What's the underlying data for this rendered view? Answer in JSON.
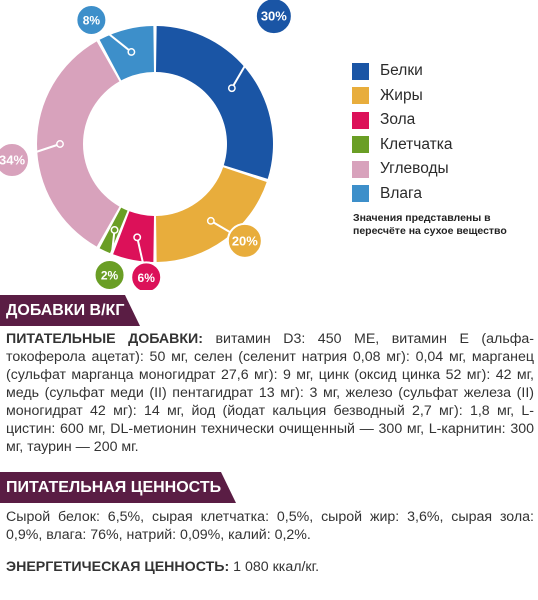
{
  "chart_data": {
    "type": "pie",
    "variant": "donut",
    "slices": [
      {
        "label": "Белки",
        "value": 30,
        "display": "30%",
        "color": "#1a55a5"
      },
      {
        "label": "Жиры",
        "value": 20,
        "display": "20%",
        "color": "#e8ad3c"
      },
      {
        "label": "Зола",
        "value": 6,
        "display": "6%",
        "color": "#dc1159"
      },
      {
        "label": "Клетчатка",
        "value": 2,
        "display": "2%",
        "color": "#6a9e25"
      },
      {
        "label": "Углеводы",
        "value": 34,
        "display": "34%",
        "color": "#d8a2bc"
      },
      {
        "label": "Влага",
        "value": 8,
        "display": "8%",
        "color": "#3d8fca"
      }
    ],
    "legend": {
      "placement": "right",
      "note": "Значения представлены в пересчёте на сухое вещество"
    }
  },
  "additives": {
    "title": "ДОБАВКИ В/КГ",
    "lead": "ПИТАТЕЛЬНЫЕ ДОБАВКИ:",
    "text": " витамин D3: 450 МЕ, витамин Е (альфа-токоферола ацетат): 50 мг, селен (селенит натрия 0,08 мг): 0,04 мг, марганец (сульфат марганца моногидрат 27,6 мг): 9 мг, цинк (оксид цинка 52 мг): 42 мг, медь (сульфат меди (II) пентагидрат 13 мг): 3 мг, железо (сульфат железа (II) моногидрат 42 мг): 14 мг, йод (йодат кальция безводный 2,7 мг): 1,8 мг, L-цистин: 600 мг, DL-метионин технически очищенный — 300 мг, L-карнитин: 300 мг, таурин — 200 мг."
  },
  "nutrition": {
    "title": "ПИТАТЕЛЬНАЯ ЦЕННОСТЬ",
    "text": "Сырой белок: 6,5%, сырая клетчатка: 0,5%, сырой жир: 3,6%, сырая зола: 0,9%, влага: 76%, натрий: 0,09%, калий: 0,2%.",
    "energy_label": "ЭНЕРГЕТИЧЕСКАЯ ЦЕННОСТЬ:",
    "energy_value": " 1 080 ккал/кг."
  }
}
